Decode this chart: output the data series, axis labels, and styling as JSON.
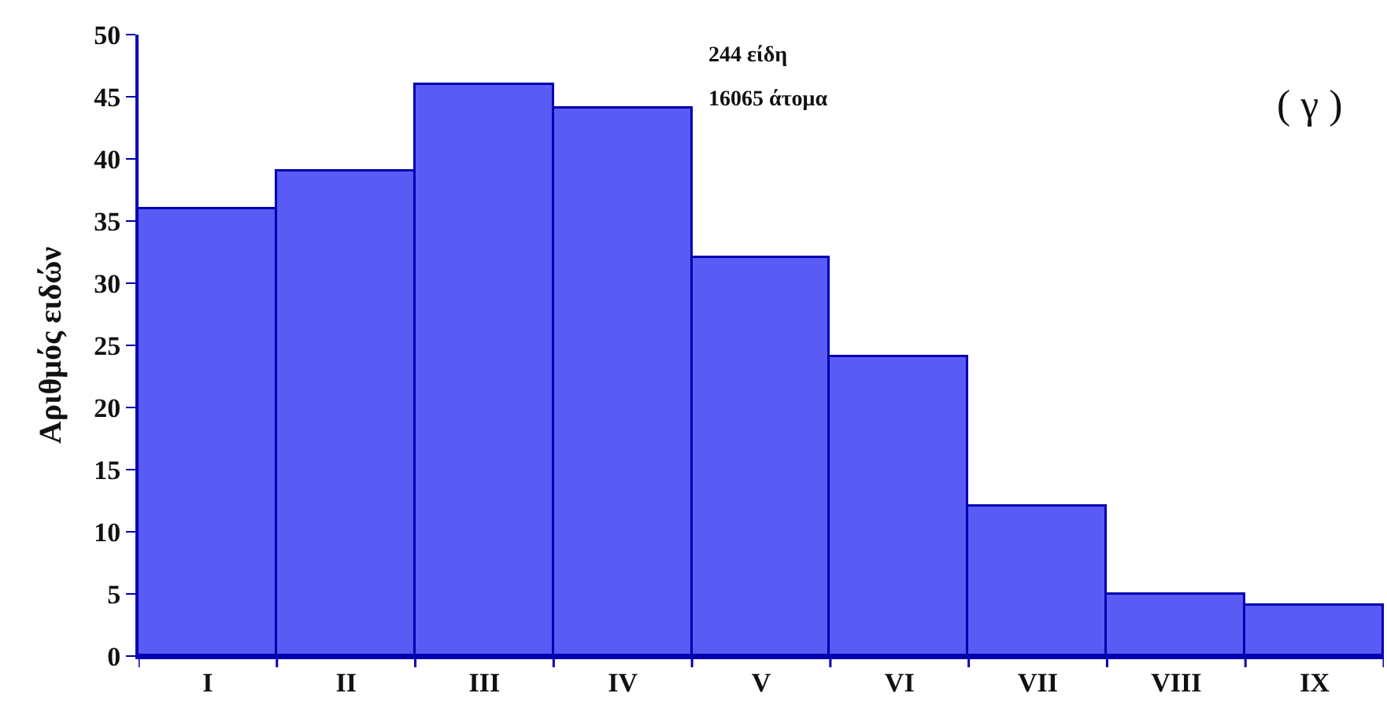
{
  "chart_data": {
    "type": "bar",
    "ylabel": "Αριθμός ειδών",
    "categories": [
      "I",
      "II",
      "III",
      "IV",
      "V",
      "VI",
      "VII",
      "VIII",
      "IX"
    ],
    "values": [
      36,
      39,
      46,
      44,
      32,
      24,
      12,
      5,
      4
    ],
    "color": "#5a5af5",
    "ylim": [
      0,
      50
    ],
    "yticks": [
      0,
      5,
      10,
      15,
      20,
      25,
      30,
      35,
      40,
      45,
      50
    ],
    "legend": false,
    "annotations": [
      "244 είδη",
      "16065 άτομα",
      "( γ )"
    ]
  }
}
